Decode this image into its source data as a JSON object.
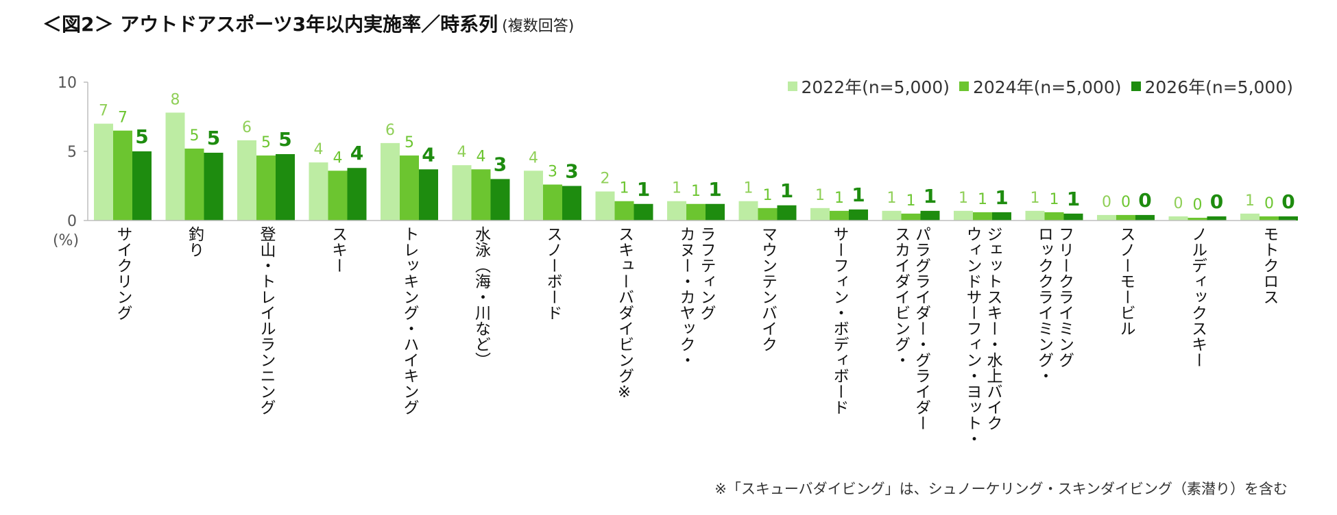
{
  "title": {
    "main": "＜図2＞ アウトドアスポーツ3年以内実施率／時系列",
    "sub": "(複数回答)"
  },
  "footnote": "※「スキューバダイビング」は、シュノーケリング・スキンダイビング（素潜り）を含む",
  "colors": {
    "s2022": "#bdeca3",
    "s2024": "#6cc530",
    "s2026": "#1e8c0f",
    "label2022": "#8fcf57",
    "label2024": "#6cc530",
    "label2026": "#1e8c0f",
    "axis": "#bdbdbd"
  },
  "chart_data": {
    "type": "bar",
    "title": "＜図2＞ アウトドアスポーツ3年以内実施率／時系列",
    "unit_label": "(%)",
    "ylim": [
      0,
      10
    ],
    "yticks": [
      0,
      5,
      10
    ],
    "legend_position": "top-right",
    "categories": [
      "サイクリング",
      "釣り",
      "登山・トレイルランニング",
      "スキー",
      "トレッキング・ハイキング",
      "水泳（海・川など）",
      "スノーボード",
      "スキューバダイビング※",
      "カヌー・カヤック・ラフティング",
      "マウンテンバイク",
      "サーフィン・ボディボード",
      "スカイダイビング・パラグライダー・グライダー",
      "ウィンドサーフィン・ヨット・ジェットスキー・水上バイク",
      "ロッククライミング・フリークライミング",
      "スノーモービル",
      "ノルディックスキー",
      "モトクロス"
    ],
    "category_lines": [
      [
        "サイクリング"
      ],
      [
        "釣り"
      ],
      [
        "登山・トレイルランニング"
      ],
      [
        "スキー"
      ],
      [
        "トレッキング・ハイキング"
      ],
      [
        "水泳（海・川など）"
      ],
      [
        "スノーボード"
      ],
      [
        "スキューバダイビング※"
      ],
      [
        "カヌー・カヤック・",
        "ラフティング"
      ],
      [
        "マウンテンバイク"
      ],
      [
        "サーフィン・ボディボード"
      ],
      [
        "スカイダイビング・",
        "パラグライダー・グライダー"
      ],
      [
        "ウィンドサーフィン・ヨット・",
        "ジェットスキー・水上バイク"
      ],
      [
        "ロッククライミング・",
        "フリークライミング"
      ],
      [
        "スノーモービル"
      ],
      [
        "ノルディックスキー"
      ],
      [
        "モトクロス"
      ]
    ],
    "series": [
      {
        "name": "2022年(n=5,000)",
        "values": [
          7.0,
          7.8,
          5.8,
          4.2,
          5.6,
          4.0,
          3.6,
          2.1,
          1.4,
          1.4,
          0.9,
          0.7,
          0.7,
          0.7,
          0.4,
          0.3,
          0.5
        ],
        "labels": [
          "7",
          "8",
          "6",
          "4",
          "6",
          "4",
          "4",
          "2",
          "1",
          "1",
          "1",
          "1",
          "1",
          "1",
          "0",
          "0",
          "1"
        ]
      },
      {
        "name": "2024年(n=5,000)",
        "values": [
          6.5,
          5.2,
          4.7,
          3.6,
          4.7,
          3.7,
          2.6,
          1.4,
          1.2,
          0.9,
          0.7,
          0.5,
          0.6,
          0.6,
          0.4,
          0.2,
          0.3
        ],
        "labels": [
          "7",
          "5",
          "5",
          "4",
          "5",
          "4",
          "3",
          "1",
          "1",
          "1",
          "1",
          "1",
          "1",
          "1",
          "0",
          "0",
          "0"
        ]
      },
      {
        "name": "2026年(n=5,000)",
        "values": [
          5.0,
          4.9,
          4.8,
          3.8,
          3.7,
          3.0,
          2.5,
          1.2,
          1.2,
          1.1,
          0.8,
          0.7,
          0.6,
          0.5,
          0.4,
          0.3,
          0.3
        ],
        "labels": [
          "5",
          "5",
          "5",
          "4",
          "4",
          "3",
          "3",
          "1",
          "1",
          "1",
          "1",
          "1",
          "1",
          "1",
          "0",
          "0",
          "0"
        ]
      }
    ]
  }
}
